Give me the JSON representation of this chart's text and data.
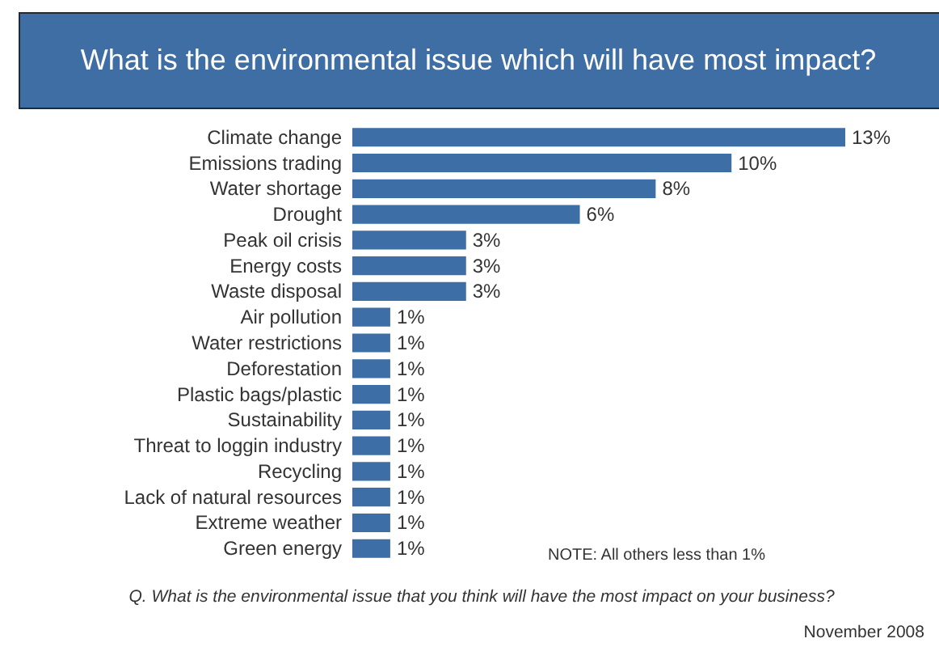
{
  "chart_data": {
    "type": "bar",
    "orientation": "horizontal",
    "title": "What is the environmental issue which will have most impact?",
    "categories": [
      "Climate change",
      "Emissions trading",
      "Water shortage",
      "Drought",
      "Peak oil crisis",
      "Energy costs",
      "Waste disposal",
      "Air pollution",
      "Water restrictions",
      "Deforestation",
      "Plastic bags/plastic",
      "Sustainability",
      "Threat to loggin industry",
      "Recycling",
      "Lack of natural resources",
      "Extreme weather",
      "Green energy"
    ],
    "values": [
      13,
      10,
      8,
      6,
      3,
      3,
      3,
      1,
      1,
      1,
      1,
      1,
      1,
      1,
      1,
      1,
      1
    ],
    "value_labels": [
      "13%",
      "10%",
      "8%",
      "6%",
      "3%",
      "3%",
      "3%",
      "1%",
      "1%",
      "1%",
      "1%",
      "1%",
      "1%",
      "1%",
      "1%",
      "1%",
      "1%"
    ],
    "color": "#3d6fa6",
    "tick_labels": "y",
    "annotations": [
      "NOTE: All others less than 1%",
      "Q. What is the environmental issue that you think will have the most impact on your business?",
      "November 2008"
    ]
  }
}
